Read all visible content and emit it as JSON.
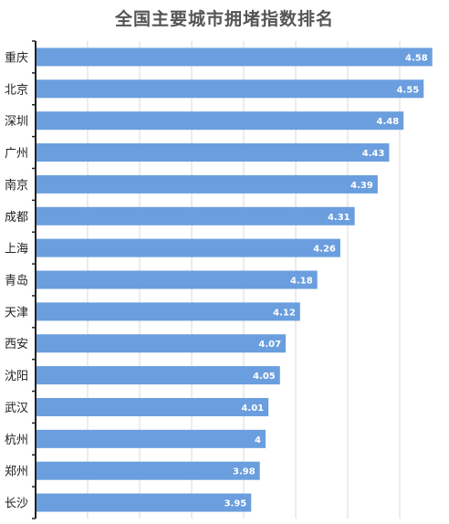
{
  "chart_data": {
    "type": "bar",
    "orientation": "horizontal",
    "title": "全国主要城市拥堵指数排名",
    "categories": [
      "重庆",
      "北京",
      "深圳",
      "广州",
      "南京",
      "成都",
      "上海",
      "青岛",
      "天津",
      "西安",
      "沈阳",
      "武汉",
      "杭州",
      "郑州",
      "长沙"
    ],
    "values": [
      4.58,
      4.55,
      4.48,
      4.43,
      4.39,
      4.31,
      4.26,
      4.18,
      4.12,
      4.07,
      4.05,
      4.01,
      4,
      3.98,
      3.95
    ],
    "value_labels": [
      "4.58",
      "4.55",
      "4.48",
      "4.43",
      "4.39",
      "4.31",
      "4.26",
      "4.18",
      "4.12",
      "4.07",
      "4.05",
      "4.01",
      "4",
      "3.98",
      "3.95"
    ],
    "xlim": [
      3.2,
      4.6
    ],
    "grid": true,
    "legend": "none",
    "bar_color": "#6a9ede"
  }
}
